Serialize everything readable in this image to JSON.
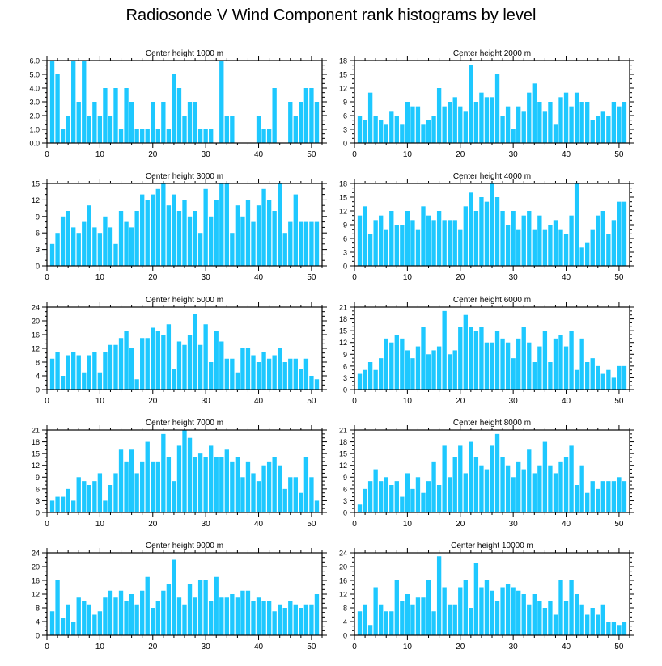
{
  "page": {
    "title": "Radiosonde V Wind Component rank histograms by level",
    "bar_color": "#1ec8ff"
  },
  "chart_data": [
    {
      "type": "bar",
      "title": "Center height 1000 m",
      "x": [
        1,
        2,
        3,
        4,
        5,
        6,
        7,
        8,
        9,
        10,
        11,
        12,
        13,
        14,
        15,
        16,
        17,
        18,
        19,
        20,
        21,
        22,
        23,
        24,
        25,
        26,
        27,
        28,
        29,
        30,
        31,
        32,
        33,
        34,
        35,
        36,
        37,
        38,
        39,
        40,
        41,
        42,
        43,
        44,
        45,
        46,
        47,
        48,
        49,
        50,
        51
      ],
      "values": [
        6,
        5,
        1,
        2,
        6,
        3,
        6,
        2,
        3,
        2,
        4,
        2,
        4,
        1,
        4,
        3,
        1,
        1,
        1,
        3,
        1,
        3,
        1,
        5,
        4,
        2,
        3,
        3,
        1,
        1,
        1,
        0,
        6,
        2,
        2,
        0,
        0,
        0,
        0,
        2,
        1,
        1,
        4,
        0,
        0,
        3,
        2,
        3,
        4,
        4,
        3
      ],
      "xlim": [
        0,
        52
      ],
      "ylim": [
        0,
        6
      ],
      "yticks": [
        0,
        1,
        2,
        3,
        4,
        5,
        6
      ],
      "ytick_labels": [
        "0.0",
        "1.0",
        "2.0",
        "3.0",
        "4.0",
        "5.0",
        "6.0"
      ],
      "xticks": [
        0,
        10,
        20,
        30,
        40,
        50
      ]
    },
    {
      "type": "bar",
      "title": "Center height 2000 m",
      "x": [
        1,
        2,
        3,
        4,
        5,
        6,
        7,
        8,
        9,
        10,
        11,
        12,
        13,
        14,
        15,
        16,
        17,
        18,
        19,
        20,
        21,
        22,
        23,
        24,
        25,
        26,
        27,
        28,
        29,
        30,
        31,
        32,
        33,
        34,
        35,
        36,
        37,
        38,
        39,
        40,
        41,
        42,
        43,
        44,
        45,
        46,
        47,
        48,
        49,
        50,
        51
      ],
      "values": [
        6,
        5,
        11,
        6,
        5,
        4,
        7,
        6,
        4,
        9,
        8,
        8,
        4,
        5,
        6,
        12,
        8,
        9,
        10,
        8,
        7,
        17,
        9,
        11,
        10,
        10,
        15,
        6,
        8,
        3,
        8,
        7,
        11,
        13,
        9,
        7,
        9,
        4,
        10,
        11,
        8,
        11,
        9,
        9,
        5,
        6,
        7,
        6,
        9,
        8,
        9
      ],
      "xlim": [
        0,
        52
      ],
      "ylim": [
        0,
        18
      ],
      "yticks": [
        0,
        3,
        6,
        9,
        12,
        15,
        18
      ],
      "ytick_labels": [
        "0",
        "3",
        "6",
        "9",
        "12",
        "15",
        "18"
      ],
      "xticks": [
        0,
        10,
        20,
        30,
        40,
        50
      ]
    },
    {
      "type": "bar",
      "title": "Center height 3000 m",
      "x": [
        1,
        2,
        3,
        4,
        5,
        6,
        7,
        8,
        9,
        10,
        11,
        12,
        13,
        14,
        15,
        16,
        17,
        18,
        19,
        20,
        21,
        22,
        23,
        24,
        25,
        26,
        27,
        28,
        29,
        30,
        31,
        32,
        33,
        34,
        35,
        36,
        37,
        38,
        39,
        40,
        41,
        42,
        43,
        44,
        45,
        46,
        47,
        48,
        49,
        50,
        51
      ],
      "values": [
        4,
        6,
        9,
        10,
        7,
        6,
        8,
        11,
        7,
        6,
        9,
        7,
        4,
        10,
        8,
        7,
        10,
        13,
        12,
        13,
        14,
        15,
        11,
        13,
        10,
        12,
        9,
        10,
        6,
        14,
        9,
        12,
        15,
        15,
        6,
        11,
        9,
        12,
        8,
        11,
        14,
        12,
        10,
        15,
        6,
        8,
        13,
        8,
        8,
        8,
        8
      ],
      "xlim": [
        0,
        52
      ],
      "ylim": [
        0,
        15
      ],
      "yticks": [
        0,
        3,
        6,
        9,
        12,
        15
      ],
      "ytick_labels": [
        "0",
        "3",
        "6",
        "9",
        "12",
        "15"
      ],
      "xticks": [
        0,
        10,
        20,
        30,
        40,
        50
      ]
    },
    {
      "type": "bar",
      "title": "Center height 4000 m",
      "x": [
        1,
        2,
        3,
        4,
        5,
        6,
        7,
        8,
        9,
        10,
        11,
        12,
        13,
        14,
        15,
        16,
        17,
        18,
        19,
        20,
        21,
        22,
        23,
        24,
        25,
        26,
        27,
        28,
        29,
        30,
        31,
        32,
        33,
        34,
        35,
        36,
        37,
        38,
        39,
        40,
        41,
        42,
        43,
        44,
        45,
        46,
        47,
        48,
        49,
        50,
        51
      ],
      "values": [
        11,
        13,
        7,
        10,
        11,
        8,
        12,
        9,
        9,
        12,
        10,
        8,
        13,
        11,
        10,
        12,
        10,
        10,
        10,
        8,
        13,
        16,
        12,
        15,
        14,
        18,
        15,
        12,
        9,
        12,
        8,
        11,
        12,
        8,
        11,
        8,
        9,
        10,
        8,
        7,
        11,
        18,
        4,
        5,
        8,
        11,
        12,
        7,
        10,
        14,
        14
      ],
      "xlim": [
        0,
        52
      ],
      "ylim": [
        0,
        18
      ],
      "yticks": [
        0,
        3,
        6,
        9,
        12,
        15,
        18
      ],
      "ytick_labels": [
        "0",
        "3",
        "6",
        "9",
        "12",
        "15",
        "18"
      ],
      "xticks": [
        0,
        10,
        20,
        30,
        40,
        50
      ]
    },
    {
      "type": "bar",
      "title": "Center height 5000 m",
      "x": [
        1,
        2,
        3,
        4,
        5,
        6,
        7,
        8,
        9,
        10,
        11,
        12,
        13,
        14,
        15,
        16,
        17,
        18,
        19,
        20,
        21,
        22,
        23,
        24,
        25,
        26,
        27,
        28,
        29,
        30,
        31,
        32,
        33,
        34,
        35,
        36,
        37,
        38,
        39,
        40,
        41,
        42,
        43,
        44,
        45,
        46,
        47,
        48,
        49,
        50,
        51
      ],
      "values": [
        9,
        11,
        4,
        10,
        11,
        10,
        5,
        10,
        11,
        5,
        11,
        13,
        13,
        15,
        17,
        12,
        3,
        15,
        15,
        18,
        17,
        16,
        19,
        6,
        14,
        13,
        16,
        22,
        13,
        19,
        8,
        17,
        14,
        9,
        9,
        5,
        12,
        12,
        10,
        8,
        11,
        9,
        10,
        12,
        8,
        9,
        9,
        6,
        9,
        4,
        3
      ],
      "xlim": [
        0,
        52
      ],
      "ylim": [
        0,
        24
      ],
      "yticks": [
        0,
        4,
        8,
        12,
        16,
        20,
        24
      ],
      "ytick_labels": [
        "0",
        "4",
        "8",
        "12",
        "16",
        "20",
        "24"
      ],
      "xticks": [
        0,
        10,
        20,
        30,
        40,
        50
      ]
    },
    {
      "type": "bar",
      "title": "Center height 6000 m",
      "x": [
        1,
        2,
        3,
        4,
        5,
        6,
        7,
        8,
        9,
        10,
        11,
        12,
        13,
        14,
        15,
        16,
        17,
        18,
        19,
        20,
        21,
        22,
        23,
        24,
        25,
        26,
        27,
        28,
        29,
        30,
        31,
        32,
        33,
        34,
        35,
        36,
        37,
        38,
        39,
        40,
        41,
        42,
        43,
        44,
        45,
        46,
        47,
        48,
        49,
        50,
        51
      ],
      "values": [
        4,
        5,
        7,
        5,
        8,
        13,
        12,
        14,
        13,
        10,
        8,
        11,
        16,
        9,
        10,
        11,
        20,
        9,
        10,
        16,
        19,
        16,
        15,
        16,
        12,
        12,
        15,
        13,
        12,
        8,
        13,
        16,
        12,
        7,
        11,
        15,
        7,
        13,
        14,
        11,
        15,
        5,
        13,
        7,
        8,
        6,
        4,
        5,
        3,
        6,
        6
      ],
      "xlim": [
        0,
        52
      ],
      "ylim": [
        0,
        21
      ],
      "yticks": [
        0,
        3,
        6,
        9,
        12,
        15,
        18,
        21
      ],
      "ytick_labels": [
        "0",
        "3",
        "6",
        "9",
        "12",
        "15",
        "18",
        "21"
      ],
      "xticks": [
        0,
        10,
        20,
        30,
        40,
        50
      ]
    },
    {
      "type": "bar",
      "title": "Center height 7000 m",
      "x": [
        1,
        2,
        3,
        4,
        5,
        6,
        7,
        8,
        9,
        10,
        11,
        12,
        13,
        14,
        15,
        16,
        17,
        18,
        19,
        20,
        21,
        22,
        23,
        24,
        25,
        26,
        27,
        28,
        29,
        30,
        31,
        32,
        33,
        34,
        35,
        36,
        37,
        38,
        39,
        40,
        41,
        42,
        43,
        44,
        45,
        46,
        47,
        48,
        49,
        50,
        51
      ],
      "values": [
        3,
        4,
        4,
        6,
        3,
        9,
        8,
        7,
        8,
        10,
        3,
        7,
        10,
        16,
        13,
        16,
        10,
        13,
        18,
        13,
        13,
        20,
        14,
        8,
        17,
        21,
        19,
        14,
        15,
        14,
        17,
        14,
        14,
        16,
        13,
        14,
        9,
        13,
        10,
        8,
        12,
        13,
        14,
        12,
        6,
        9,
        9,
        5,
        14,
        9,
        3
      ],
      "xlim": [
        0,
        52
      ],
      "ylim": [
        0,
        21
      ],
      "yticks": [
        0,
        3,
        6,
        9,
        12,
        15,
        18,
        21
      ],
      "ytick_labels": [
        "0",
        "3",
        "6",
        "9",
        "12",
        "15",
        "18",
        "21"
      ],
      "xticks": [
        0,
        10,
        20,
        30,
        40,
        50
      ]
    },
    {
      "type": "bar",
      "title": "Center height 8000 m",
      "x": [
        1,
        2,
        3,
        4,
        5,
        6,
        7,
        8,
        9,
        10,
        11,
        12,
        13,
        14,
        15,
        16,
        17,
        18,
        19,
        20,
        21,
        22,
        23,
        24,
        25,
        26,
        27,
        28,
        29,
        30,
        31,
        32,
        33,
        34,
        35,
        36,
        37,
        38,
        39,
        40,
        41,
        42,
        43,
        44,
        45,
        46,
        47,
        48,
        49,
        50,
        51
      ],
      "values": [
        2,
        6,
        8,
        11,
        8,
        9,
        7,
        8,
        4,
        10,
        6,
        9,
        5,
        8,
        13,
        7,
        17,
        9,
        14,
        17,
        10,
        18,
        14,
        12,
        11,
        17,
        20,
        14,
        12,
        9,
        13,
        11,
        16,
        10,
        12,
        18,
        12,
        10,
        13,
        14,
        17,
        7,
        12,
        5,
        8,
        6,
        8,
        8,
        8,
        9,
        8
      ],
      "xlim": [
        0,
        52
      ],
      "ylim": [
        0,
        21
      ],
      "yticks": [
        0,
        3,
        6,
        9,
        12,
        15,
        18,
        21
      ],
      "ytick_labels": [
        "0",
        "3",
        "6",
        "9",
        "12",
        "15",
        "18",
        "21"
      ],
      "xticks": [
        0,
        10,
        20,
        30,
        40,
        50
      ]
    },
    {
      "type": "bar",
      "title": "Center height 9000 m",
      "x": [
        1,
        2,
        3,
        4,
        5,
        6,
        7,
        8,
        9,
        10,
        11,
        12,
        13,
        14,
        15,
        16,
        17,
        18,
        19,
        20,
        21,
        22,
        23,
        24,
        25,
        26,
        27,
        28,
        29,
        30,
        31,
        32,
        33,
        34,
        35,
        36,
        37,
        38,
        39,
        40,
        41,
        42,
        43,
        44,
        45,
        46,
        47,
        48,
        49,
        50,
        51
      ],
      "values": [
        7,
        16,
        5,
        9,
        4,
        11,
        10,
        9,
        6,
        7,
        11,
        13,
        11,
        13,
        10,
        12,
        9,
        13,
        17,
        8,
        10,
        13,
        15,
        22,
        11,
        9,
        15,
        11,
        16,
        16,
        10,
        17,
        11,
        11,
        12,
        11,
        13,
        13,
        10,
        11,
        10,
        10,
        7,
        9,
        8,
        10,
        9,
        8,
        9,
        9,
        12
      ],
      "xlim": [
        0,
        52
      ],
      "ylim": [
        0,
        24
      ],
      "yticks": [
        0,
        4,
        8,
        12,
        16,
        20,
        24
      ],
      "ytick_labels": [
        "0",
        "4",
        "8",
        "12",
        "16",
        "20",
        "24"
      ],
      "xticks": [
        0,
        10,
        20,
        30,
        40,
        50
      ]
    },
    {
      "type": "bar",
      "title": "Center height 10000 m",
      "x": [
        1,
        2,
        3,
        4,
        5,
        6,
        7,
        8,
        9,
        10,
        11,
        12,
        13,
        14,
        15,
        16,
        17,
        18,
        19,
        20,
        21,
        22,
        23,
        24,
        25,
        26,
        27,
        28,
        29,
        30,
        31,
        32,
        33,
        34,
        35,
        36,
        37,
        38,
        39,
        40,
        41,
        42,
        43,
        44,
        45,
        46,
        47,
        48,
        49,
        50,
        51
      ],
      "values": [
        7,
        9,
        3,
        14,
        9,
        7,
        7,
        16,
        10,
        12,
        9,
        11,
        11,
        16,
        7,
        23,
        14,
        9,
        9,
        14,
        16,
        8,
        21,
        14,
        16,
        13,
        10,
        14,
        15,
        14,
        13,
        12,
        9,
        12,
        10,
        8,
        10,
        6,
        16,
        10,
        16,
        12,
        9,
        6,
        8,
        6,
        9,
        4,
        4,
        3,
        4
      ],
      "xlim": [
        0,
        52
      ],
      "ylim": [
        0,
        24
      ],
      "yticks": [
        0,
        4,
        8,
        12,
        16,
        20,
        24
      ],
      "ytick_labels": [
        "0",
        "4",
        "8",
        "12",
        "16",
        "20",
        "24"
      ],
      "xticks": [
        0,
        10,
        20,
        30,
        40,
        50
      ]
    }
  ]
}
